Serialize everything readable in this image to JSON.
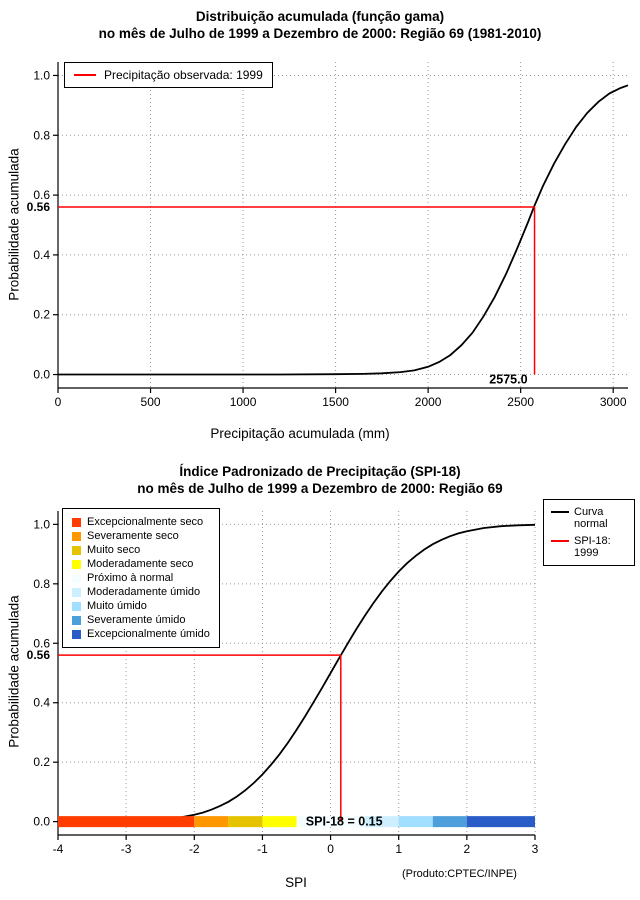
{
  "chart_data": [
    {
      "type": "line",
      "title_line1": "Distribuição acumulada (função gama)",
      "title_line2": "no mês de Julho de 1999 a Dezembro de 2000: Região 69 (1981-2010)",
      "xlabel": "Precipitação acumulada (mm)",
      "ylabel": "Probabilidade acumulada",
      "xlim": [
        0,
        3080
      ],
      "ylim": [
        0,
        1
      ],
      "xticks": [
        0,
        500,
        1000,
        1500,
        2000,
        2500,
        3000
      ],
      "yticks": [
        0,
        0.2,
        0.4,
        0.6,
        0.8,
        1
      ],
      "ytick_labels": [
        "0.0",
        "0.2",
        "0.4",
        "0.6",
        "0.8",
        "1.0"
      ],
      "grid": "dotted",
      "legend": [
        {
          "label": "Precipitação observada: 1999",
          "color": "#FF0000",
          "type": "line"
        }
      ],
      "marker": {
        "x": 2575,
        "y": 0.56,
        "x_label": "2575.0",
        "y_label": "0.56",
        "color": "#FF0000"
      },
      "curve": {
        "name": "Gamma CDF",
        "color": "#000000",
        "points": [
          [
            0,
            0
          ],
          [
            400,
            0
          ],
          [
            800,
            0
          ],
          [
            1200,
            0.0002
          ],
          [
            1500,
            0.001
          ],
          [
            1650,
            0.002
          ],
          [
            1750,
            0.004
          ],
          [
            1850,
            0.008
          ],
          [
            1925,
            0.014
          ],
          [
            2000,
            0.026
          ],
          [
            2060,
            0.042
          ],
          [
            2120,
            0.065
          ],
          [
            2180,
            0.098
          ],
          [
            2240,
            0.14
          ],
          [
            2300,
            0.195
          ],
          [
            2360,
            0.26
          ],
          [
            2420,
            0.335
          ],
          [
            2480,
            0.42
          ],
          [
            2540,
            0.51
          ],
          [
            2575,
            0.565
          ],
          [
            2620,
            0.63
          ],
          [
            2680,
            0.705
          ],
          [
            2740,
            0.77
          ],
          [
            2800,
            0.828
          ],
          [
            2860,
            0.875
          ],
          [
            2920,
            0.912
          ],
          [
            2980,
            0.94
          ],
          [
            3040,
            0.958
          ],
          [
            3080,
            0.967
          ]
        ]
      }
    },
    {
      "type": "line",
      "title_line1": "Índice Padronizado de Precipitação (SPI-18)",
      "title_line2": "no mês de Julho de 1999 a Dezembro de 2000: Região 69",
      "xlabel": "SPI",
      "ylabel": "Probabilidade acumulada",
      "xlim": [
        -4,
        3
      ],
      "ylim": [
        0,
        1
      ],
      "xticks": [
        -4,
        -3,
        -2,
        -1,
        0,
        1,
        2,
        3
      ],
      "yticks": [
        0,
        0.2,
        0.4,
        0.6,
        0.8,
        1
      ],
      "ytick_labels": [
        "0.0",
        "0.2",
        "0.4",
        "0.6",
        "0.8",
        "1.0"
      ],
      "grid": "dotted",
      "legend_right": [
        {
          "label": "Curva normal",
          "color": "#000000",
          "type": "line"
        },
        {
          "label": "SPI-18: 1999",
          "color": "#FF0000",
          "type": "line"
        }
      ],
      "categories": [
        {
          "label": "Excepcionalmente seco",
          "color": "#FF3D00",
          "range": [
            -4,
            -2
          ]
        },
        {
          "label": "Severamente seco",
          "color": "#FF9800",
          "range": [
            -2,
            -1.5
          ]
        },
        {
          "label": "Muito seco",
          "color": "#E6C300",
          "range": [
            -1.5,
            -1
          ]
        },
        {
          "label": "Moderadamente seco",
          "color": "#FFFF00",
          "range": [
            -1,
            -0.5
          ]
        },
        {
          "label": "Próximo à normal",
          "color": "#F4FDFF",
          "range": [
            -0.5,
            0.5
          ]
        },
        {
          "label": "Moderadamente úmido",
          "color": "#CDEFFF",
          "range": [
            0.5,
            1
          ]
        },
        {
          "label": "Muito úmido",
          "color": "#A0DFFF",
          "range": [
            1,
            1.5
          ]
        },
        {
          "label": "Severamente úmido",
          "color": "#4D9FDB",
          "range": [
            1.5,
            2
          ]
        },
        {
          "label": "Excepcionalmente úmido",
          "color": "#2A5CC8",
          "range": [
            2,
            3
          ]
        }
      ],
      "marker": {
        "x": 0.15,
        "y": 0.56,
        "x_label": "SPI-18 = 0.15",
        "y_label": "0.56",
        "color": "#FF0000"
      },
      "curve": {
        "name": "Curva normal",
        "color": "#000000",
        "points": [
          [
            -4,
            0
          ],
          [
            -3.5,
            0.0002
          ],
          [
            -3,
            0.0013
          ],
          [
            -2.75,
            0.003
          ],
          [
            -2.5,
            0.0062
          ],
          [
            -2.25,
            0.0122
          ],
          [
            -2,
            0.0228
          ],
          [
            -1.875,
            0.0304
          ],
          [
            -1.75,
            0.0401
          ],
          [
            -1.625,
            0.0521
          ],
          [
            -1.5,
            0.0668
          ],
          [
            -1.375,
            0.0846
          ],
          [
            -1.25,
            0.1056
          ],
          [
            -1.125,
            0.1303
          ],
          [
            -1,
            0.1587
          ],
          [
            -0.875,
            0.1908
          ],
          [
            -0.75,
            0.2266
          ],
          [
            -0.625,
            0.266
          ],
          [
            -0.5,
            0.3085
          ],
          [
            -0.375,
            0.3538
          ],
          [
            -0.25,
            0.4013
          ],
          [
            -0.125,
            0.4503
          ],
          [
            0,
            0.5
          ],
          [
            0.125,
            0.5497
          ],
          [
            0.25,
            0.5987
          ],
          [
            0.375,
            0.6462
          ],
          [
            0.5,
            0.6915
          ],
          [
            0.625,
            0.734
          ],
          [
            0.75,
            0.7734
          ],
          [
            0.875,
            0.8092
          ],
          [
            1,
            0.8413
          ],
          [
            1.125,
            0.8697
          ],
          [
            1.25,
            0.8944
          ],
          [
            1.375,
            0.9154
          ],
          [
            1.5,
            0.9332
          ],
          [
            1.625,
            0.9479
          ],
          [
            1.75,
            0.9599
          ],
          [
            1.875,
            0.9696
          ],
          [
            2,
            0.9772
          ],
          [
            2.25,
            0.9878
          ],
          [
            2.5,
            0.9938
          ],
          [
            2.75,
            0.997
          ],
          [
            3,
            0.9987
          ]
        ]
      },
      "footer": "(Produto:CPTEC/INPE)"
    }
  ]
}
